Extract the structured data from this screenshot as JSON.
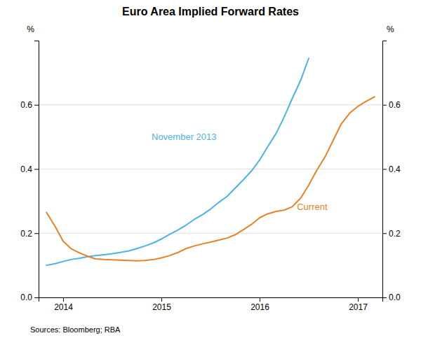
{
  "chart_data": {
    "type": "line",
    "title": "Euro Area Implied Forward Rates",
    "y_label": "%",
    "y2_label": "%",
    "source": "Sources:  Bloomberg; RBA",
    "xlim": [
      2013.75,
      2017.25
    ],
    "xticks": [
      2014,
      2015,
      2016,
      2017
    ],
    "ylim": [
      0.0,
      0.8
    ],
    "yticks": [
      {
        "value": 0.0,
        "label": "0.0"
      },
      {
        "value": 0.2,
        "label": "0.2"
      },
      {
        "value": 0.4,
        "label": "0.4"
      },
      {
        "value": 0.6,
        "label": "0.6"
      }
    ],
    "y2lim": [
      0.0,
      0.8
    ],
    "y2ticks": [
      {
        "value": 0.0,
        "label": "0.0"
      },
      {
        "value": 0.2,
        "label": "0.2"
      },
      {
        "value": 0.4,
        "label": "0.4"
      },
      {
        "value": 0.6,
        "label": "0.6"
      }
    ],
    "grid": true,
    "series": [
      {
        "color": "#4db3e6",
        "x": [
          2013.83,
          2013.92,
          2014.0,
          2014.08,
          2014.17,
          2014.25,
          2014.33,
          2014.42,
          2014.5,
          2014.58,
          2014.67,
          2014.75,
          2014.83,
          2014.92,
          2015.0,
          2015.08,
          2015.17,
          2015.25,
          2015.33,
          2015.42,
          2015.5,
          2015.58,
          2015.67,
          2015.75,
          2015.83,
          2015.92,
          2016.0,
          2016.08,
          2016.17,
          2016.25,
          2016.33,
          2016.42,
          2016.5
        ],
        "values": [
          0.1,
          0.105,
          0.112,
          0.118,
          0.122,
          0.127,
          0.13,
          0.133,
          0.136,
          0.14,
          0.145,
          0.152,
          0.16,
          0.17,
          0.182,
          0.196,
          0.21,
          0.225,
          0.242,
          0.258,
          0.275,
          0.295,
          0.315,
          0.34,
          0.365,
          0.395,
          0.428,
          0.468,
          0.512,
          0.562,
          0.618,
          0.678,
          0.745
        ]
      },
      {
        "color": "#e8822a",
        "x": [
          2013.83,
          2013.92,
          2014.0,
          2014.08,
          2014.17,
          2014.25,
          2014.33,
          2014.42,
          2014.5,
          2014.58,
          2014.67,
          2014.75,
          2014.83,
          2014.92,
          2015.0,
          2015.08,
          2015.17,
          2015.25,
          2015.33,
          2015.42,
          2015.5,
          2015.58,
          2015.67,
          2015.75,
          2015.83,
          2015.92,
          2016.0,
          2016.08,
          2016.17,
          2016.25,
          2016.33,
          2016.42,
          2016.5,
          2016.58,
          2016.67,
          2016.75,
          2016.83,
          2016.92,
          2017.0,
          2017.08,
          2017.17
        ],
        "values": [
          0.265,
          0.22,
          0.175,
          0.152,
          0.138,
          0.128,
          0.12,
          0.118,
          0.117,
          0.116,
          0.115,
          0.114,
          0.115,
          0.118,
          0.123,
          0.13,
          0.14,
          0.152,
          0.16,
          0.167,
          0.172,
          0.178,
          0.185,
          0.195,
          0.21,
          0.228,
          0.248,
          0.26,
          0.268,
          0.272,
          0.282,
          0.31,
          0.35,
          0.395,
          0.44,
          0.49,
          0.54,
          0.575,
          0.595,
          0.61,
          0.625
        ]
      }
    ],
    "annotations": [
      {
        "text": "November 2013",
        "x": 2014.9,
        "y": 0.485,
        "color": "#4db3e6"
      },
      {
        "text": "Current",
        "x": 2016.38,
        "y": 0.265,
        "color": "#e8822a"
      }
    ]
  }
}
